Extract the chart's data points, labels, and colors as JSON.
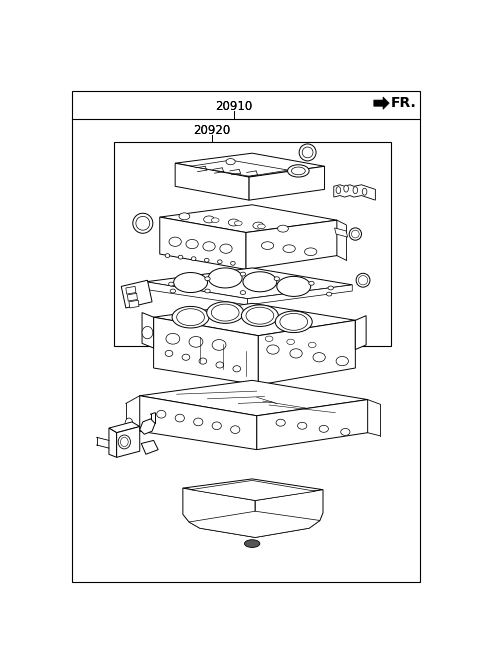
{
  "bg_color": "#ffffff",
  "line_color": "#000000",
  "label_20910": "20910",
  "label_20920": "20920",
  "label_FR": "FR.",
  "font_size_labels": 8.5,
  "font_size_FR": 10
}
